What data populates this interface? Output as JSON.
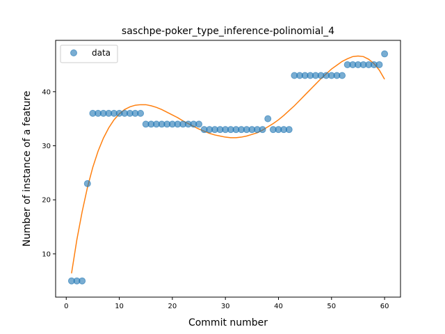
{
  "chart_data": {
    "type": "scatter",
    "title": "saschpe-poker_type_inference-polinomial_4",
    "xlabel": "Commit number",
    "ylabel": "Number of instance of a feature",
    "xlim": [
      -2,
      63
    ],
    "ylim": [
      2.0,
      49.5
    ],
    "xticks": [
      0,
      10,
      20,
      30,
      40,
      50,
      60
    ],
    "yticks": [
      10,
      20,
      30,
      40
    ],
    "legend_placement": "top-left",
    "grid": false,
    "series": [
      {
        "name": "data",
        "kind": "scatter",
        "color": "#1f77b4",
        "x": [
          1,
          2,
          3,
          4,
          5,
          6,
          7,
          8,
          9,
          10,
          11,
          12,
          13,
          14,
          15,
          16,
          17,
          18,
          19,
          20,
          21,
          22,
          23,
          24,
          25,
          26,
          27,
          28,
          29,
          30,
          31,
          32,
          33,
          34,
          35,
          36,
          37,
          38,
          39,
          40,
          41,
          42,
          43,
          44,
          45,
          46,
          47,
          48,
          49,
          50,
          51,
          52,
          53,
          54,
          55,
          56,
          57,
          58,
          59,
          60
        ],
        "y": [
          5,
          5,
          5,
          23,
          36,
          36,
          36,
          36,
          36,
          36,
          36,
          36,
          36,
          36,
          34,
          34,
          34,
          34,
          34,
          34,
          34,
          34,
          34,
          34,
          34,
          33,
          33,
          33,
          33,
          33,
          33,
          33,
          33,
          33,
          33,
          33,
          33,
          35,
          33,
          33,
          33,
          33,
          43,
          43,
          43,
          43,
          43,
          43,
          43,
          43,
          43,
          43,
          45,
          45,
          45,
          45,
          45,
          45,
          45,
          47
        ]
      },
      {
        "kind": "line",
        "color": "#ff7f0e",
        "x": [
          1,
          2,
          3,
          4,
          5,
          6,
          7,
          8,
          9,
          10,
          11,
          12,
          13,
          14,
          15,
          16,
          17,
          18,
          19,
          20,
          21,
          22,
          23,
          24,
          25,
          26,
          27,
          28,
          29,
          30,
          31,
          32,
          33,
          34,
          35,
          36,
          37,
          38,
          39,
          40,
          41,
          42,
          43,
          44,
          45,
          46,
          47,
          48,
          49,
          50,
          51,
          52,
          53,
          54,
          55,
          56,
          57,
          58,
          59,
          60
        ],
        "y": [
          6.4,
          12.6,
          17.8,
          22.3,
          26.0,
          29.0,
          31.4,
          33.3,
          34.8,
          35.9,
          36.7,
          37.2,
          37.5,
          37.6,
          37.6,
          37.4,
          37.1,
          36.7,
          36.2,
          35.7,
          35.2,
          34.6,
          34.1,
          33.6,
          33.1,
          32.7,
          32.3,
          32.0,
          31.8,
          31.6,
          31.5,
          31.5,
          31.6,
          31.8,
          32.1,
          32.4,
          32.9,
          33.5,
          34.1,
          34.8,
          35.6,
          36.5,
          37.4,
          38.4,
          39.4,
          40.4,
          41.4,
          42.4,
          43.3,
          44.2,
          44.9,
          45.6,
          46.1,
          46.5,
          46.6,
          46.5,
          46.0,
          45.2,
          44.0,
          42.3
        ]
      }
    ]
  }
}
